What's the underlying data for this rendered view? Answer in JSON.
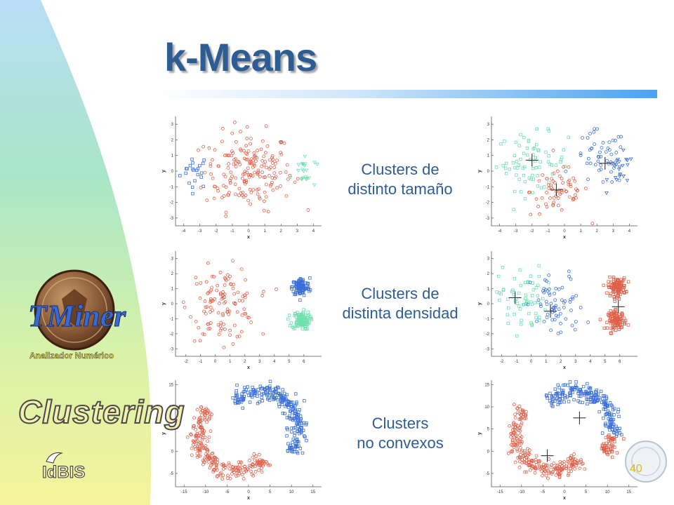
{
  "slide": {
    "title": "k-Means",
    "page_number": "40",
    "section_label": "Clustering",
    "brand_label": "IdBIS",
    "logo_text": {
      "main": "TMiner",
      "sub": "Analizador Numérico"
    }
  },
  "rows": [
    {
      "caption_line1": "Clusters de",
      "caption_line2": "distinto tamaño"
    },
    {
      "caption_line1": "Clusters de",
      "caption_line2": "distinta densidad"
    },
    {
      "caption_line1": "Clusters",
      "caption_line2": "no convexos"
    }
  ],
  "axes": {
    "xlabel": "x",
    "ylabel": "y"
  },
  "colors": {
    "title": "#2e5d94",
    "red": "#e0604a",
    "blue": "#3a6fd8",
    "green": "#6fe0b0",
    "gray": "#333333",
    "page_number": "#e8b800"
  },
  "chart_data": [
    {
      "type": "scatter",
      "id": "size-orig",
      "xticks": [
        -4,
        -3,
        -2,
        -1,
        0,
        1,
        2,
        3,
        4
      ],
      "yticks": [
        -3,
        -2,
        -1,
        0,
        1,
        2,
        3
      ],
      "xlim": [
        -4.5,
        4.5
      ],
      "ylim": [
        -3.5,
        3.5
      ],
      "clusters": [
        {
          "color": "blue",
          "marker": "square",
          "cx": -3.3,
          "cy": 0,
          "sx": 0.45,
          "sy": 0.55,
          "n": 22
        },
        {
          "color": "red",
          "marker": "circle",
          "cx": 0,
          "cy": 0,
          "sx": 1.35,
          "sy": 1.25,
          "n": 190
        },
        {
          "color": "green",
          "marker": "triangle",
          "cx": 3.4,
          "cy": 0,
          "sx": 0.4,
          "sy": 0.55,
          "n": 24
        }
      ],
      "centroids": []
    },
    {
      "type": "scatter",
      "id": "size-kmeans",
      "xticks": [
        -4,
        -3,
        -2,
        -1,
        0,
        1,
        2,
        3,
        4
      ],
      "yticks": [
        -3,
        -2,
        -1,
        0,
        1,
        2,
        3
      ],
      "xlim": [
        -4.5,
        4.5
      ],
      "ylim": [
        -3.5,
        3.5
      ],
      "clusters": [
        {
          "color": "green",
          "marker": "square",
          "cx": -2,
          "cy": 0.6,
          "sx": 1.1,
          "sy": 0.9,
          "n": 75
        },
        {
          "color": "red",
          "marker": "circle",
          "cx": -0.3,
          "cy": -1.3,
          "sx": 0.9,
          "sy": 0.8,
          "n": 65
        },
        {
          "color": "blue",
          "marker": "circle",
          "cx": 2.2,
          "cy": 0.8,
          "sx": 0.8,
          "sy": 0.9,
          "n": 50
        },
        {
          "color": "blue",
          "marker": "triangle",
          "cx": 3.5,
          "cy": 0,
          "sx": 0.4,
          "sy": 0.55,
          "n": 22
        }
      ],
      "centroids": [
        [
          -2,
          0.7
        ],
        [
          -0.5,
          -1.2
        ],
        [
          2.5,
          0.5
        ]
      ]
    },
    {
      "type": "scatter",
      "id": "density-orig",
      "xticks": [
        -2,
        -1,
        0,
        1,
        2,
        3,
        4,
        5,
        6
      ],
      "yticks": [
        -3,
        -2,
        -1,
        0,
        1,
        2,
        3
      ],
      "xlim": [
        -2.7,
        7.2
      ],
      "ylim": [
        -3.5,
        3.5
      ],
      "clusters": [
        {
          "color": "red",
          "marker": "circle",
          "cx": 0.5,
          "cy": 0,
          "sx": 1.15,
          "sy": 1.2,
          "n": 120
        },
        {
          "color": "blue",
          "marker": "square",
          "cx": 5.8,
          "cy": 1.1,
          "sx": 0.3,
          "sy": 0.3,
          "n": 110
        },
        {
          "color": "green",
          "marker": "square",
          "cx": 5.8,
          "cy": -1.1,
          "sx": 0.3,
          "sy": 0.3,
          "n": 110
        }
      ],
      "centroids": []
    },
    {
      "type": "scatter",
      "id": "density-kmeans",
      "xticks": [
        -2,
        -1,
        0,
        1,
        2,
        3,
        4,
        5,
        6
      ],
      "yticks": [
        -3,
        -2,
        -1,
        0,
        1,
        2,
        3
      ],
      "xlim": [
        -2.7,
        7.2
      ],
      "ylim": [
        -3.5,
        3.5
      ],
      "clusters": [
        {
          "color": "green",
          "marker": "square",
          "cx": -0.6,
          "cy": 0.3,
          "sx": 0.8,
          "sy": 1.1,
          "n": 65
        },
        {
          "color": "blue",
          "marker": "circle",
          "cx": 1.8,
          "cy": -0.2,
          "sx": 0.9,
          "sy": 1.1,
          "n": 65
        },
        {
          "color": "red",
          "marker": "square",
          "cx": 5.8,
          "cy": 1.1,
          "sx": 0.3,
          "sy": 0.3,
          "n": 110
        },
        {
          "color": "red",
          "marker": "square",
          "cx": 5.8,
          "cy": -1.1,
          "sx": 0.3,
          "sy": 0.3,
          "n": 110
        }
      ],
      "centroids": [
        [
          -1.1,
          0.4
        ],
        [
          1.3,
          -0.5
        ],
        [
          5.9,
          -0.2
        ]
      ]
    },
    {
      "type": "scatter",
      "id": "nonconvex-orig",
      "xticks": [
        -15,
        -10,
        -5,
        0,
        5,
        10,
        15
      ],
      "yticks": [
        -5,
        0,
        5,
        10,
        15
      ],
      "xlim": [
        -17,
        17
      ],
      "ylim": [
        -8,
        16
      ],
      "clusters": [
        {
          "color": "blue",
          "marker": "square",
          "shape": "arc",
          "cx": 3,
          "cy": 5,
          "r": 8.5,
          "a0": -40,
          "a1": 140,
          "thick": 2.0,
          "n": 260
        },
        {
          "color": "red",
          "marker": "circle",
          "shape": "arc",
          "cx": -3,
          "cy": 4,
          "r": 8.5,
          "a0": 140,
          "a1": 320,
          "thick": 2.0,
          "n": 260
        }
      ],
      "centroids": []
    },
    {
      "type": "scatter",
      "id": "nonconvex-kmeans",
      "xticks": [
        -15,
        -10,
        -5,
        0,
        5,
        10,
        15
      ],
      "yticks": [
        -5,
        0,
        5,
        10,
        15
      ],
      "xlim": [
        -17,
        17
      ],
      "ylim": [
        -8,
        16
      ],
      "clusters": [
        {
          "color": "blue",
          "marker": "square",
          "shape": "arc",
          "cx": 3,
          "cy": 5,
          "r": 8.5,
          "a0": -10,
          "a1": 140,
          "thick": 2.0,
          "n": 210
        },
        {
          "color": "red",
          "marker": "square",
          "shape": "arc",
          "cx": 3,
          "cy": 5,
          "r": 8.5,
          "a0": -40,
          "a1": -10,
          "thick": 2.0,
          "n": 50
        },
        {
          "color": "red",
          "marker": "circle",
          "shape": "arc",
          "cx": -3,
          "cy": 4,
          "r": 8.5,
          "a0": 140,
          "a1": 320,
          "thick": 2.0,
          "n": 260
        }
      ],
      "centroids": [
        [
          3.5,
          7.5
        ],
        [
          -4,
          -1
        ]
      ]
    }
  ]
}
